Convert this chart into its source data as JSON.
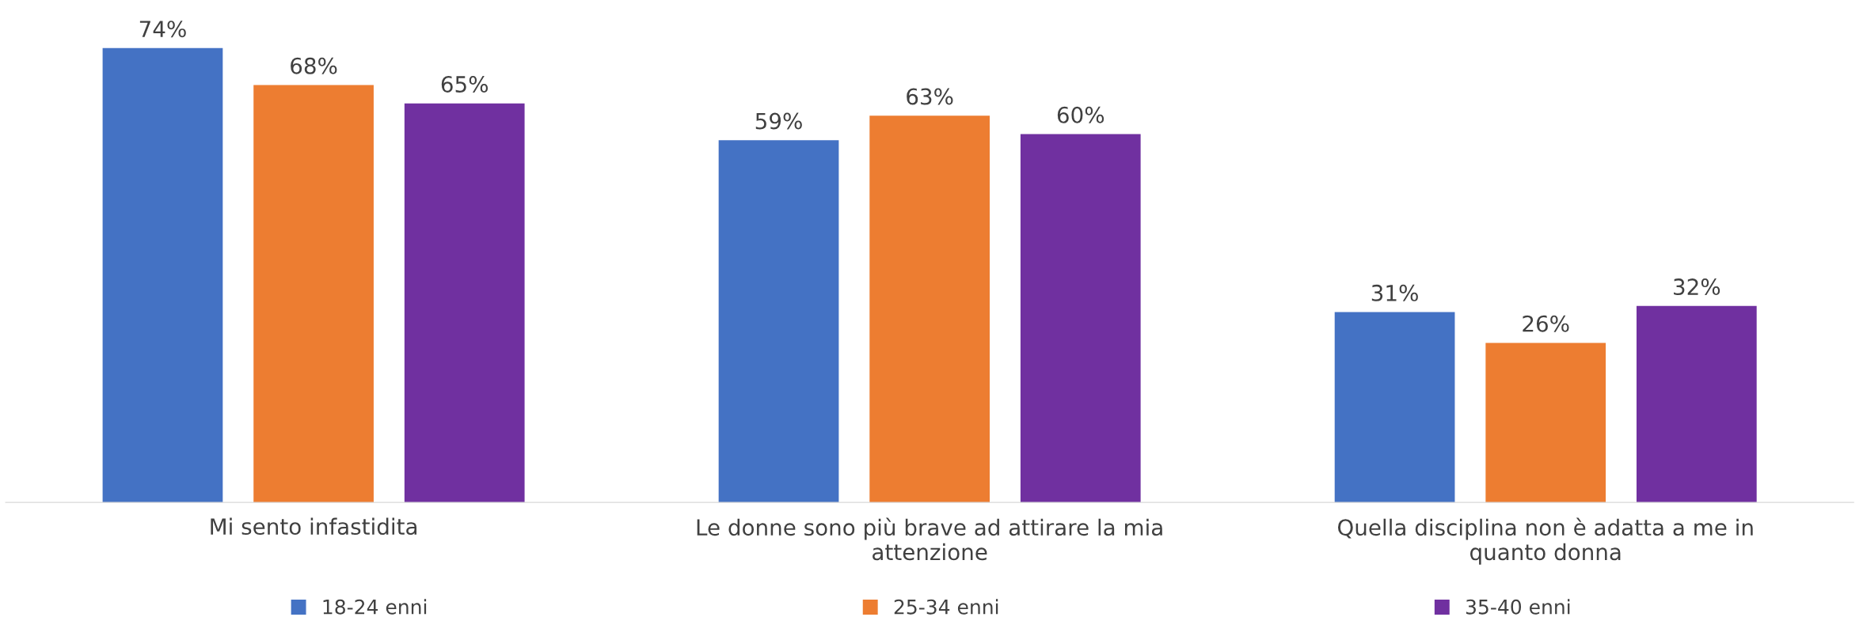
{
  "chart_data": {
    "type": "bar",
    "categories": [
      "Mi sento infastidita",
      "Le donne sono più brave ad attirare la mia\nattenzione",
      "Quella disciplina non è adatta a me in\nquanto donna"
    ],
    "series": [
      {
        "name": "18-24 enni",
        "color": "#4472c4",
        "values": [
          74,
          59,
          31
        ],
        "value_labels": [
          "74%",
          "59%",
          "31%"
        ]
      },
      {
        "name": "25-34 enni",
        "color": "#ed7d31",
        "values": [
          68,
          63,
          26
        ],
        "value_labels": [
          "68%",
          "63%",
          "26%"
        ]
      },
      {
        "name": "35-40 enni",
        "color": "#7030a0",
        "values": [
          65,
          60,
          32
        ],
        "value_labels": [
          "65%",
          "60%",
          "32%"
        ]
      }
    ],
    "legend": "bottom"
  }
}
